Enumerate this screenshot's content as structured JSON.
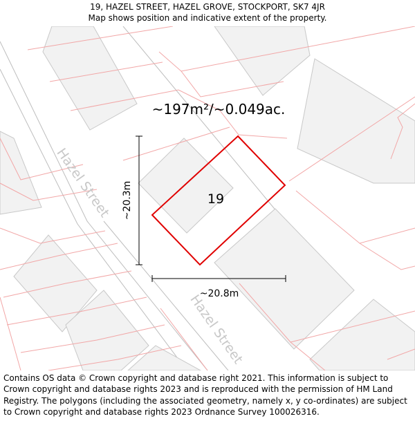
{
  "header": {
    "address_line": "19, HAZEL STREET, HAZEL GROVE, STOCKPORT, SK7 4JR",
    "subtitle": "Map shows position and indicative extent of the property."
  },
  "map": {
    "area_label": "~197m²/~0.049ac.",
    "plot_number": "19",
    "height_dimension": "~20.3m",
    "width_dimension": "~20.8m",
    "street_label_upper": "Hazel Street",
    "street_label_lower": "Hazel Street",
    "colors": {
      "plot_outline": "#e00000",
      "parcel_lines": "#f2a6a6",
      "building_fill": "#f2f2f2",
      "building_stroke": "#c8c8c8",
      "road_edge": "#bdbdbd",
      "street_label": "#c8c8c8"
    }
  },
  "footer": {
    "attribution": "Contains OS data © Crown copyright and database right 2021. This information is subject to Crown copyright and database rights 2023 and is reproduced with the permission of HM Land Registry. The polygons (including the associated geometry, namely x, y co-ordinates) are subject to Crown copyright and database rights 2023 Ordnance Survey 100026316."
  }
}
